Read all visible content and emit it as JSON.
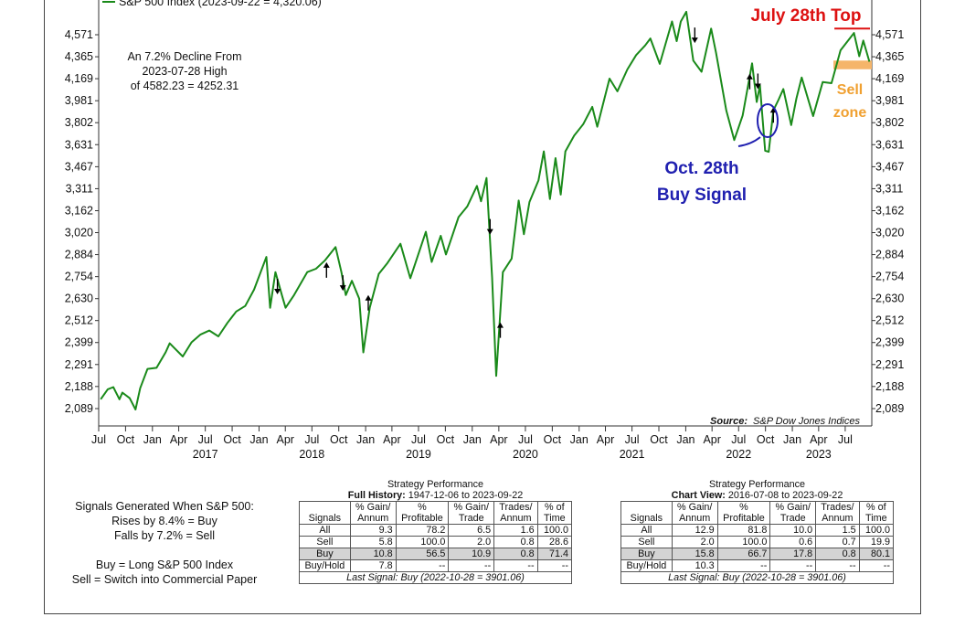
{
  "chart_data": {
    "type": "line",
    "title": "",
    "legend": "S&P 500 Index (2023-09-22 = 4,320.06)",
    "source_label": "Source:",
    "source_text": "S&P Dow Jones Indices",
    "scale": "log",
    "ylim": [
      2040,
      4700
    ],
    "y_ticks": [
      2089,
      2188,
      2291,
      2399,
      2512,
      2630,
      2754,
      2884,
      3020,
      3162,
      3311,
      3467,
      3631,
      3802,
      3981,
      4169,
      4365,
      4571
    ],
    "y_tick_labels": [
      "2,089",
      "2,188",
      "2,291",
      "2,399",
      "2,512",
      "2,630",
      "2,754",
      "2,884",
      "3,020",
      "3,162",
      "3,311",
      "3,467",
      "3,631",
      "3,802",
      "3,981",
      "4,169",
      "4,365",
      "4,571"
    ],
    "x_range": [
      "2016-07-01",
      "2023-09-30"
    ],
    "x_ticks": [
      {
        "date": "2016-07-01",
        "label": "Jul"
      },
      {
        "date": "2016-10-01",
        "label": "Oct"
      },
      {
        "date": "2017-01-01",
        "label": "Jan"
      },
      {
        "date": "2017-04-01",
        "label": "Apr"
      },
      {
        "date": "2017-07-01",
        "label": "Jul"
      },
      {
        "date": "2017-10-01",
        "label": "Oct"
      },
      {
        "date": "2018-01-01",
        "label": "Jan"
      },
      {
        "date": "2018-04-01",
        "label": "Apr"
      },
      {
        "date": "2018-07-01",
        "label": "Jul"
      },
      {
        "date": "2018-10-01",
        "label": "Oct"
      },
      {
        "date": "2019-01-01",
        "label": "Jan"
      },
      {
        "date": "2019-04-01",
        "label": "Apr"
      },
      {
        "date": "2019-07-01",
        "label": "Jul"
      },
      {
        "date": "2019-10-01",
        "label": "Oct"
      },
      {
        "date": "2020-01-01",
        "label": "Jan"
      },
      {
        "date": "2020-04-01",
        "label": "Apr"
      },
      {
        "date": "2020-07-01",
        "label": "Jul"
      },
      {
        "date": "2020-10-01",
        "label": "Oct"
      },
      {
        "date": "2021-01-01",
        "label": "Jan"
      },
      {
        "date": "2021-04-01",
        "label": "Apr"
      },
      {
        "date": "2021-07-01",
        "label": "Jul"
      },
      {
        "date": "2021-10-01",
        "label": "Oct"
      },
      {
        "date": "2022-01-01",
        "label": "Jan"
      },
      {
        "date": "2022-04-01",
        "label": "Apr"
      },
      {
        "date": "2022-07-01",
        "label": "Jul"
      },
      {
        "date": "2022-10-01",
        "label": "Oct"
      },
      {
        "date": "2023-01-01",
        "label": "Jan"
      },
      {
        "date": "2023-04-01",
        "label": "Apr"
      },
      {
        "date": "2023-07-01",
        "label": "Jul"
      }
    ],
    "year_labels": [
      {
        "date": "2017-07-01",
        "label": "2017"
      },
      {
        "date": "2018-07-01",
        "label": "2018"
      },
      {
        "date": "2019-07-01",
        "label": "2019"
      },
      {
        "date": "2020-07-01",
        "label": "2020"
      },
      {
        "date": "2021-07-01",
        "label": "2021"
      },
      {
        "date": "2022-07-01",
        "label": "2022"
      },
      {
        "date": "2023-04-01",
        "label": "2023"
      }
    ],
    "series": [
      {
        "name": "S&P 500 Index",
        "color": "#1a8a1a",
        "points": [
          [
            "2016-07-08",
            2130
          ],
          [
            "2016-08-01",
            2175
          ],
          [
            "2016-08-20",
            2185
          ],
          [
            "2016-09-10",
            2130
          ],
          [
            "2016-09-20",
            2160
          ],
          [
            "2016-10-15",
            2135
          ],
          [
            "2016-11-04",
            2085
          ],
          [
            "2016-11-20",
            2180
          ],
          [
            "2016-12-15",
            2270
          ],
          [
            "2017-01-15",
            2275
          ],
          [
            "2017-02-15",
            2350
          ],
          [
            "2017-03-01",
            2395
          ],
          [
            "2017-04-15",
            2330
          ],
          [
            "2017-05-15",
            2400
          ],
          [
            "2017-06-15",
            2440
          ],
          [
            "2017-07-15",
            2460
          ],
          [
            "2017-08-15",
            2430
          ],
          [
            "2017-09-15",
            2500
          ],
          [
            "2017-10-15",
            2560
          ],
          [
            "2017-11-15",
            2590
          ],
          [
            "2017-12-15",
            2680
          ],
          [
            "2018-01-26",
            2870
          ],
          [
            "2018-02-08",
            2580
          ],
          [
            "2018-02-26",
            2780
          ],
          [
            "2018-03-22",
            2640
          ],
          [
            "2018-04-02",
            2580
          ],
          [
            "2018-05-01",
            2650
          ],
          [
            "2018-06-15",
            2780
          ],
          [
            "2018-07-15",
            2800
          ],
          [
            "2018-08-15",
            2850
          ],
          [
            "2018-09-20",
            2930
          ],
          [
            "2018-10-10",
            2780
          ],
          [
            "2018-10-25",
            2650
          ],
          [
            "2018-11-15",
            2730
          ],
          [
            "2018-12-10",
            2630
          ],
          [
            "2018-12-24",
            2350
          ],
          [
            "2019-01-15",
            2580
          ],
          [
            "2019-02-15",
            2770
          ],
          [
            "2019-03-15",
            2830
          ],
          [
            "2019-04-30",
            2950
          ],
          [
            "2019-06-03",
            2745
          ],
          [
            "2019-07-26",
            3025
          ],
          [
            "2019-08-15",
            2840
          ],
          [
            "2019-09-15",
            3000
          ],
          [
            "2019-10-03",
            2885
          ],
          [
            "2019-11-15",
            3120
          ],
          [
            "2019-12-15",
            3190
          ],
          [
            "2020-01-17",
            3330
          ],
          [
            "2020-01-31",
            3225
          ],
          [
            "2020-02-19",
            3386
          ],
          [
            "2020-03-09",
            2750
          ],
          [
            "2020-03-23",
            2237
          ],
          [
            "2020-04-15",
            2780
          ],
          [
            "2020-05-15",
            2860
          ],
          [
            "2020-06-08",
            3230
          ],
          [
            "2020-06-26",
            3010
          ],
          [
            "2020-07-15",
            3220
          ],
          [
            "2020-08-15",
            3370
          ],
          [
            "2020-09-02",
            3580
          ],
          [
            "2020-09-23",
            3240
          ],
          [
            "2020-10-12",
            3530
          ],
          [
            "2020-10-30",
            3270
          ],
          [
            "2020-11-15",
            3580
          ],
          [
            "2020-12-15",
            3700
          ],
          [
            "2021-01-15",
            3790
          ],
          [
            "2021-02-15",
            3930
          ],
          [
            "2021-03-04",
            3770
          ],
          [
            "2021-04-15",
            4170
          ],
          [
            "2021-05-12",
            4060
          ],
          [
            "2021-06-15",
            4250
          ],
          [
            "2021-07-15",
            4380
          ],
          [
            "2021-08-15",
            4470
          ],
          [
            "2021-09-02",
            4535
          ],
          [
            "2021-10-04",
            4300
          ],
          [
            "2021-11-15",
            4700
          ],
          [
            "2021-12-01",
            4510
          ],
          [
            "2021-12-15",
            4700
          ],
          [
            "2022-01-03",
            4796
          ],
          [
            "2022-01-27",
            4330
          ],
          [
            "2022-02-24",
            4230
          ],
          [
            "2022-03-29",
            4630
          ],
          [
            "2022-04-15",
            4400
          ],
          [
            "2022-05-20",
            3900
          ],
          [
            "2022-06-16",
            3666
          ],
          [
            "2022-07-15",
            3860
          ],
          [
            "2022-08-16",
            4305
          ],
          [
            "2022-09-01",
            3970
          ],
          [
            "2022-09-12",
            4110
          ],
          [
            "2022-09-30",
            3585
          ],
          [
            "2022-10-12",
            3577
          ],
          [
            "2022-10-28",
            3901
          ],
          [
            "2022-11-15",
            3990
          ],
          [
            "2022-12-01",
            4080
          ],
          [
            "2022-12-28",
            3783
          ],
          [
            "2023-01-15",
            3999
          ],
          [
            "2023-02-02",
            4179
          ],
          [
            "2023-03-13",
            3855
          ],
          [
            "2023-04-15",
            4140
          ],
          [
            "2023-05-15",
            4130
          ],
          [
            "2023-06-15",
            4425
          ],
          [
            "2023-07-31",
            4588
          ],
          [
            "2023-08-18",
            4370
          ],
          [
            "2023-09-01",
            4515
          ],
          [
            "2023-09-22",
            4320
          ]
        ]
      }
    ],
    "signal_arrows": [
      {
        "date": "2018-03-05",
        "value": 2700,
        "dir": "down"
      },
      {
        "date": "2018-08-20",
        "value": 2790,
        "dir": "up"
      },
      {
        "date": "2018-10-15",
        "value": 2720,
        "dir": "down"
      },
      {
        "date": "2019-01-10",
        "value": 2605,
        "dir": "up"
      },
      {
        "date": "2020-03-02",
        "value": 3060,
        "dir": "down"
      },
      {
        "date": "2020-04-06",
        "value": 2460,
        "dir": "up"
      },
      {
        "date": "2022-02-01",
        "value": 4570,
        "dir": "down"
      },
      {
        "date": "2022-08-08",
        "value": 4140,
        "dir": "up"
      },
      {
        "date": "2022-09-05",
        "value": 4150,
        "dir": "down"
      },
      {
        "date": "2022-10-28",
        "value": 3860,
        "dir": "up"
      }
    ],
    "top_line": {
      "date_from": "2023-05-25",
      "date_to": "2023-09-30",
      "value": 4630
    },
    "sell_zone": {
      "from": 4252.31,
      "to": 4330,
      "color": "#f5b56a"
    },
    "decline_note": [
      "An 7.2% Decline From",
      "2023-07-28 High",
      "of 4582.23 = 4252.31"
    ],
    "annotations": {
      "top": {
        "text": "July 28th Top",
        "color": "#dd1111"
      },
      "sell": {
        "line1": "Sell",
        "line2": "zone",
        "color": "#f0a030"
      },
      "buy": {
        "line1": "Oct. 28th",
        "line2": "Buy Signal",
        "color": "#2020b0"
      }
    }
  },
  "signals_text": {
    "line1": "Signals Generated When S&P 500:",
    "line2": "Rises by 8.4% = Buy",
    "line3": "Falls by 7.2% = Sell",
    "line4": "Buy = Long S&P 500 Index",
    "line5": "Sell = Switch into Commercial Paper"
  },
  "table_full": {
    "title": "Strategy Performance",
    "subtitle_bold": "Full History:",
    "subtitle": "1947-12-06 to 2023-09-22",
    "head1": [
      "% Gain/",
      "%",
      "% Gain/",
      "Trades/",
      "% of"
    ],
    "head2": [
      "Signals",
      "Annum",
      "Profitable",
      "Trade",
      "Annum",
      "Time"
    ],
    "rows": [
      [
        "All",
        "9.3",
        "78.2",
        "6.5",
        "1.6",
        "100.0"
      ],
      [
        "Sell",
        "5.8",
        "100.0",
        "2.0",
        "0.8",
        "28.6"
      ],
      [
        "Buy",
        "10.8",
        "56.5",
        "10.9",
        "0.8",
        "71.4"
      ],
      [
        "Buy/Hold",
        "7.8",
        "--",
        "--",
        "--",
        "--"
      ]
    ],
    "footer": "Last Signal: Buy (2022-10-28 = 3901.06)"
  },
  "table_chart": {
    "title": "Strategy Performance",
    "subtitle_bold": "Chart View:",
    "subtitle": "2016-07-08 to 2023-09-22",
    "head1": [
      "% Gain/",
      "%",
      "% Gain/",
      "Trades/",
      "% of"
    ],
    "head2": [
      "Signals",
      "Annum",
      "Profitable",
      "Trade",
      "Annum",
      "Time"
    ],
    "rows": [
      [
        "All",
        "12.9",
        "81.8",
        "10.0",
        "1.5",
        "100.0"
      ],
      [
        "Sell",
        "2.0",
        "100.0",
        "0.6",
        "0.7",
        "19.9"
      ],
      [
        "Buy",
        "15.8",
        "66.7",
        "17.8",
        "0.8",
        "80.1"
      ],
      [
        "Buy/Hold",
        "10.3",
        "--",
        "--",
        "--",
        "--"
      ]
    ],
    "footer": "Last Signal: Buy (2022-10-28 = 3901.06)"
  }
}
